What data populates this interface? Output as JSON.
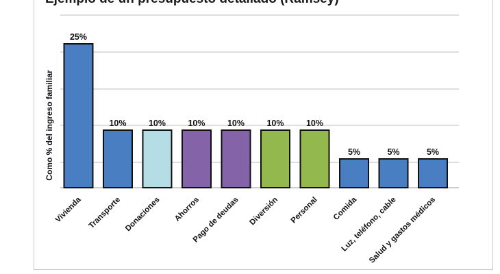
{
  "chart_data": {
    "type": "bar",
    "title": "Ejemplo de un presupuesto detallado (Ramsey)",
    "xlabel": "",
    "ylabel": "Como % del ingreso familiar",
    "categories": [
      "Vivienda",
      "Transporte",
      "Donaciones",
      "Ahorros",
      "Pago de deudas",
      "Diversión",
      "Personal",
      "Comida",
      "Luz, teléfono, cable",
      "Salud y gastos médicos"
    ],
    "values": [
      25,
      10,
      10,
      10,
      10,
      10,
      10,
      5,
      5,
      5
    ],
    "value_labels": [
      "25%",
      "10%",
      "10%",
      "10%",
      "10%",
      "10%",
      "10%",
      "5%",
      "5%",
      "5%"
    ],
    "bar_colors": [
      "#4a7ec2",
      "#4a7ec2",
      "#b5dde6",
      "#8563a8",
      "#8563a8",
      "#93b84e",
      "#93b84e",
      "#4a7ec2",
      "#4a7ec2",
      "#4a7ec2"
    ],
    "ylim": [
      0,
      25
    ],
    "grid": true,
    "legend": "none"
  }
}
